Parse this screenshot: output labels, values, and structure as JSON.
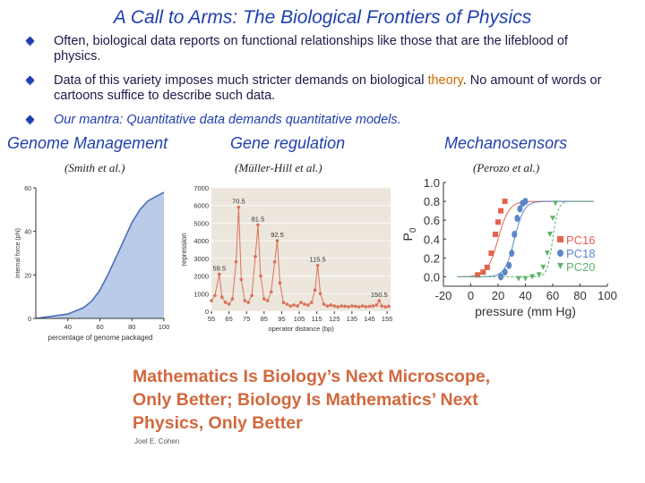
{
  "title": "A Call to Arms: The Biological Frontiers of Physics",
  "bullets": [
    "Often, biological data reports on functional relationships like those that are the lifeblood of physics.",
    {
      "before": "Data of this variety imposes much stricter demands on biological ",
      "highlight": "theory",
      "after": ".  No amount of words or cartoons suffice to describe such data."
    },
    "Our mantra: Quantitative data demands quantitative models."
  ],
  "sections": [
    {
      "heading": "Genome Management",
      "citation": "(Smith et al.)"
    },
    {
      "heading": "Gene regulation",
      "citation": "(Müller-Hill et al.)"
    },
    {
      "heading": "Mechanosensors",
      "citation": "(Perozo et al.)"
    }
  ],
  "chart_data": [
    {
      "type": "area",
      "xlabel": "percentage of genome packaged",
      "ylabel": "internal force (pN)",
      "xlim": [
        20,
        100
      ],
      "ylim": [
        0,
        60
      ],
      "xticks": [
        "40",
        "60",
        "80",
        "100"
      ],
      "yticks": [
        "0",
        "20",
        "40",
        "60"
      ],
      "x": [
        20,
        30,
        40,
        50,
        55,
        60,
        65,
        70,
        75,
        80,
        85,
        90,
        95,
        100
      ],
      "y": [
        0,
        1,
        2,
        5,
        8,
        13,
        20,
        28,
        36,
        44,
        50,
        54,
        56,
        58
      ],
      "color": "#b9cbe8"
    },
    {
      "type": "line",
      "xlabel": "operator distance (bp)",
      "ylabel": "repression",
      "xlim": [
        55,
        157
      ],
      "ylim": [
        0,
        7000
      ],
      "xticks": [
        "55",
        "65",
        "75",
        "85",
        "95",
        "105",
        "115",
        "125",
        "135",
        "145",
        "155"
      ],
      "yticks": [
        "0",
        "1000",
        "2000",
        "3000",
        "4000",
        "5000",
        "6000",
        "7000"
      ],
      "annotations": [
        {
          "label": "59.5",
          "x": 59.5,
          "y": 2100
        },
        {
          "label": "70.5",
          "x": 70.5,
          "y": 5900
        },
        {
          "label": "81.5",
          "x": 81.5,
          "y": 4900
        },
        {
          "label": "92.5",
          "x": 92.5,
          "y": 4000
        },
        {
          "label": "115.5",
          "x": 115.5,
          "y": 2600
        },
        {
          "label": "150.5",
          "x": 150.5,
          "y": 600
        }
      ],
      "x": [
        55,
        57,
        59.5,
        61,
        63,
        65,
        67,
        69,
        70.5,
        72,
        74,
        76,
        78,
        80,
        81.5,
        83,
        85,
        87,
        89,
        91,
        92.5,
        94,
        96,
        98,
        100,
        102,
        104,
        106,
        108,
        110,
        112,
        114,
        115.5,
        117,
        119,
        121,
        123,
        125,
        127,
        129,
        131,
        133,
        135,
        137,
        139,
        141,
        143,
        145,
        147,
        149,
        150.5,
        152,
        154,
        156
      ],
      "y": [
        600,
        900,
        2100,
        800,
        500,
        400,
        700,
        2800,
        5900,
        1800,
        600,
        500,
        900,
        3100,
        4900,
        2000,
        700,
        600,
        1100,
        2800,
        4000,
        1600,
        500,
        400,
        300,
        350,
        300,
        500,
        400,
        350,
        500,
        1200,
        2600,
        1000,
        400,
        300,
        350,
        300,
        250,
        300,
        280,
        260,
        300,
        280,
        250,
        300,
        260,
        280,
        300,
        350,
        600,
        300,
        250,
        280
      ],
      "color": "#d9735a"
    },
    {
      "type": "scatter",
      "xlabel": "pressure (mm Hg)",
      "ylabel": "P",
      "ylabel_sub": "0",
      "xlim": [
        -20,
        100
      ],
      "ylim": [
        -0.1,
        1.0
      ],
      "xticks": [
        "-20",
        "0",
        "20",
        "40",
        "60",
        "80",
        "100"
      ],
      "yticks": [
        "0.0",
        "0.2",
        "0.4",
        "0.6",
        "0.8",
        "1.0"
      ],
      "legend_position": "right",
      "series": [
        {
          "name": "PC16",
          "color": "#e2634d",
          "marker": "square",
          "mid": 20,
          "slope": 4,
          "x": [
            5,
            9,
            12,
            15,
            18,
            20,
            22,
            25
          ],
          "y": [
            0.02,
            0.05,
            0.1,
            0.25,
            0.45,
            0.58,
            0.7,
            0.8
          ]
        },
        {
          "name": "PC18",
          "color": "#5b86c9",
          "marker": "circle",
          "mid": 32,
          "slope": 3.5,
          "x": [
            22,
            25,
            28,
            30,
            32,
            34,
            36,
            38,
            40
          ],
          "y": [
            0.0,
            0.05,
            0.12,
            0.25,
            0.45,
            0.62,
            0.72,
            0.78,
            0.8
          ]
        },
        {
          "name": "PC20",
          "color": "#5fb36b",
          "marker": "triangle",
          "mid": 60,
          "slope": 2,
          "x": [
            35,
            40,
            45,
            50,
            53,
            56,
            58,
            60,
            62
          ],
          "y": [
            -0.02,
            -0.02,
            0.0,
            0.02,
            0.1,
            0.25,
            0.45,
            0.62,
            0.78
          ]
        }
      ]
    }
  ],
  "quote": {
    "lines": [
      "Mathematics Is Biology’s Next Microscope,",
      "Only Better; Biology Is Mathematics’ Next",
      "Physics, Only Better"
    ],
    "author": "Joel E. Cohen"
  }
}
